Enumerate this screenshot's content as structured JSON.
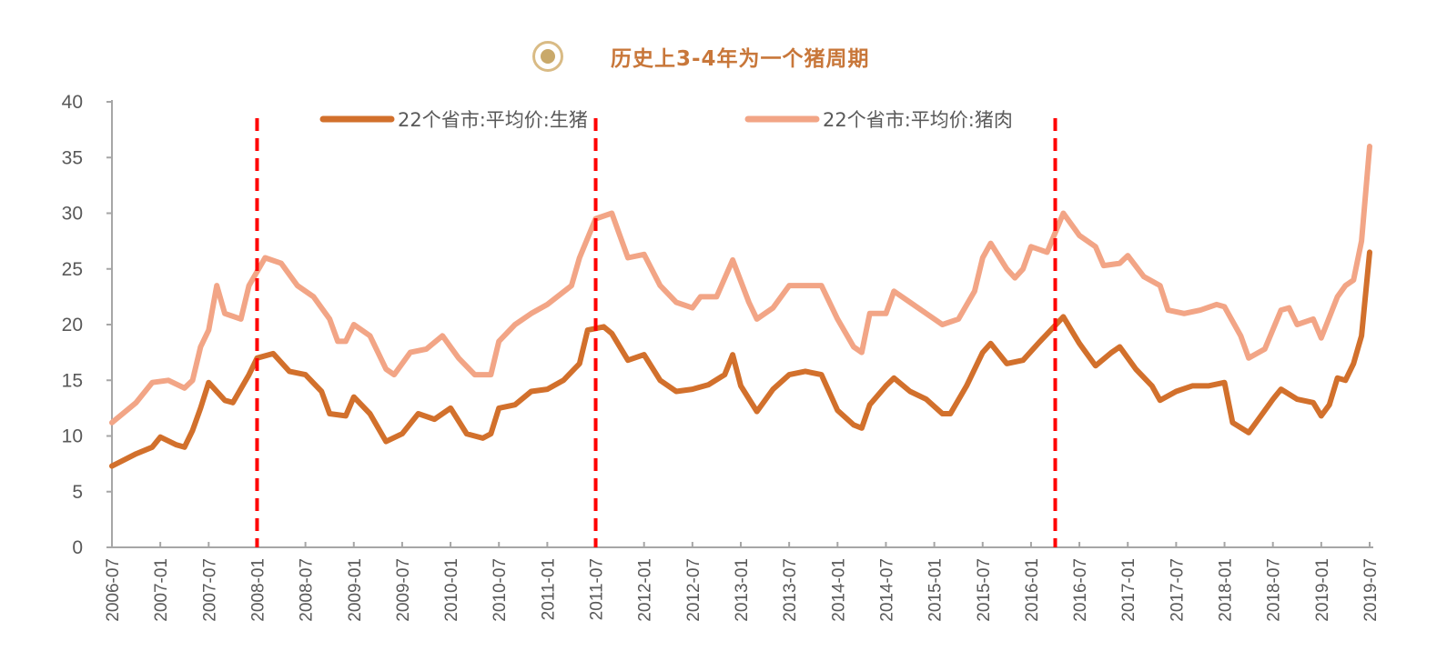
{
  "header": {
    "title": "历史上3-4年为一个猪周期",
    "icon": "target-circle-icon"
  },
  "chart_data": {
    "type": "line",
    "title": "历史上3-4年为一个猪周期",
    "xlabel": "",
    "ylabel": "",
    "ylim": [
      0,
      40
    ],
    "yticks": [
      0,
      5,
      10,
      15,
      20,
      25,
      30,
      35,
      40
    ],
    "xlim": [
      "2006-07",
      "2019-07"
    ],
    "xticks": [
      "2006-07",
      "2007-01",
      "2007-07",
      "2008-01",
      "2008-07",
      "2009-01",
      "2009-07",
      "2010-01",
      "2010-07",
      "2011-01",
      "2011-07",
      "2012-01",
      "2012-07",
      "2013-01",
      "2013-07",
      "2014-01",
      "2014-07",
      "2015-01",
      "2015-07",
      "2016-01",
      "2016-07",
      "2017-01",
      "2017-07",
      "2018-01",
      "2018-07",
      "2019-01",
      "2019-07"
    ],
    "grid": false,
    "legend_placement": "top",
    "cycle_markers": {
      "dates": [
        "2008-01",
        "2011-07",
        "2016-04"
      ],
      "color": "#ff0000",
      "style": "dashed"
    },
    "series": [
      {
        "name": "22个省市:平均价:生猪",
        "color": "#d2702c",
        "points": [
          [
            "2006-07",
            7.3
          ],
          [
            "2006-10",
            8.4
          ],
          [
            "2006-12",
            9
          ],
          [
            "2007-01",
            9.9
          ],
          [
            "2007-03",
            9.2
          ],
          [
            "2007-04",
            9
          ],
          [
            "2007-05",
            10.5
          ],
          [
            "2007-06",
            12.5
          ],
          [
            "2007-07",
            14.8
          ],
          [
            "2007-09",
            13.2
          ],
          [
            "2007-10",
            13
          ],
          [
            "2007-12",
            15.5
          ],
          [
            "2008-01",
            17
          ],
          [
            "2008-03",
            17.4
          ],
          [
            "2008-05",
            15.8
          ],
          [
            "2008-07",
            15.5
          ],
          [
            "2008-09",
            14
          ],
          [
            "2008-10",
            12
          ],
          [
            "2008-12",
            11.8
          ],
          [
            "2009-01",
            13.5
          ],
          [
            "2009-03",
            12
          ],
          [
            "2009-05",
            9.5
          ],
          [
            "2009-07",
            10.2
          ],
          [
            "2009-09",
            12
          ],
          [
            "2009-11",
            11.5
          ],
          [
            "2010-01",
            12.5
          ],
          [
            "2010-03",
            10.2
          ],
          [
            "2010-05",
            9.8
          ],
          [
            "2010-06",
            10.2
          ],
          [
            "2010-07",
            12.5
          ],
          [
            "2010-09",
            12.8
          ],
          [
            "2010-11",
            14
          ],
          [
            "2011-01",
            14.2
          ],
          [
            "2011-03",
            15
          ],
          [
            "2011-05",
            16.5
          ],
          [
            "2011-06",
            19.5
          ],
          [
            "2011-08",
            19.8
          ],
          [
            "2011-09",
            19.2
          ],
          [
            "2011-11",
            16.8
          ],
          [
            "2012-01",
            17.3
          ],
          [
            "2012-03",
            15
          ],
          [
            "2012-05",
            14
          ],
          [
            "2012-07",
            14.2
          ],
          [
            "2012-09",
            14.6
          ],
          [
            "2012-11",
            15.5
          ],
          [
            "2012-12",
            17.3
          ],
          [
            "2013-01",
            14.5
          ],
          [
            "2013-03",
            12.2
          ],
          [
            "2013-05",
            14.2
          ],
          [
            "2013-07",
            15.5
          ],
          [
            "2013-09",
            15.8
          ],
          [
            "2013-11",
            15.5
          ],
          [
            "2014-01",
            12.3
          ],
          [
            "2014-03",
            11
          ],
          [
            "2014-04",
            10.7
          ],
          [
            "2014-05",
            12.8
          ],
          [
            "2014-07",
            14.5
          ],
          [
            "2014-08",
            15.2
          ],
          [
            "2014-10",
            14
          ],
          [
            "2014-12",
            13.3
          ],
          [
            "2015-02",
            12
          ],
          [
            "2015-03",
            12
          ],
          [
            "2015-05",
            14.5
          ],
          [
            "2015-07",
            17.5
          ],
          [
            "2015-08",
            18.3
          ],
          [
            "2015-10",
            16.5
          ],
          [
            "2015-12",
            16.8
          ],
          [
            "2016-02",
            18.4
          ],
          [
            "2016-05",
            20.7
          ],
          [
            "2016-06",
            19.5
          ],
          [
            "2016-07",
            18.3
          ],
          [
            "2016-09",
            16.3
          ],
          [
            "2016-11",
            17.5
          ],
          [
            "2016-12",
            18
          ],
          [
            "2017-02",
            16
          ],
          [
            "2017-04",
            14.5
          ],
          [
            "2017-05",
            13.2
          ],
          [
            "2017-07",
            14
          ],
          [
            "2017-09",
            14.5
          ],
          [
            "2017-11",
            14.5
          ],
          [
            "2018-01",
            14.8
          ],
          [
            "2018-02",
            11.2
          ],
          [
            "2018-04",
            10.3
          ],
          [
            "2018-05",
            11.3
          ],
          [
            "2018-07",
            13.3
          ],
          [
            "2018-08",
            14.2
          ],
          [
            "2018-10",
            13.3
          ],
          [
            "2018-12",
            13
          ],
          [
            "2019-01",
            11.8
          ],
          [
            "2019-02",
            12.8
          ],
          [
            "2019-03",
            15.2
          ],
          [
            "2019-04",
            15
          ],
          [
            "2019-05",
            16.5
          ],
          [
            "2019-06",
            19
          ],
          [
            "2019-07",
            26.5
          ]
        ]
      },
      {
        "name": "22个省市:平均价:猪肉",
        "color": "#f2a586",
        "points": [
          [
            "2006-07",
            11.2
          ],
          [
            "2006-10",
            13
          ],
          [
            "2006-12",
            14.8
          ],
          [
            "2007-02",
            15
          ],
          [
            "2007-04",
            14.3
          ],
          [
            "2007-05",
            15
          ],
          [
            "2007-06",
            18
          ],
          [
            "2007-07",
            19.5
          ],
          [
            "2007-08",
            23.5
          ],
          [
            "2007-09",
            21
          ],
          [
            "2007-11",
            20.5
          ],
          [
            "2007-12",
            23.5
          ],
          [
            "2008-02",
            26
          ],
          [
            "2008-04",
            25.5
          ],
          [
            "2008-06",
            23.5
          ],
          [
            "2008-08",
            22.5
          ],
          [
            "2008-10",
            20.5
          ],
          [
            "2008-11",
            18.5
          ],
          [
            "2008-12",
            18.5
          ],
          [
            "2009-01",
            20
          ],
          [
            "2009-03",
            19
          ],
          [
            "2009-05",
            16
          ],
          [
            "2009-06",
            15.5
          ],
          [
            "2009-08",
            17.5
          ],
          [
            "2009-10",
            17.8
          ],
          [
            "2009-12",
            19
          ],
          [
            "2010-02",
            17
          ],
          [
            "2010-04",
            15.5
          ],
          [
            "2010-06",
            15.5
          ],
          [
            "2010-07",
            18.5
          ],
          [
            "2010-09",
            20
          ],
          [
            "2010-11",
            21
          ],
          [
            "2011-01",
            21.8
          ],
          [
            "2011-04",
            23.5
          ],
          [
            "2011-05",
            26
          ],
          [
            "2011-07",
            29.5
          ],
          [
            "2011-09",
            30
          ],
          [
            "2011-10",
            28
          ],
          [
            "2011-11",
            26
          ],
          [
            "2012-01",
            26.3
          ],
          [
            "2012-03",
            23.5
          ],
          [
            "2012-05",
            22
          ],
          [
            "2012-07",
            21.5
          ],
          [
            "2012-08",
            22.5
          ],
          [
            "2012-10",
            22.5
          ],
          [
            "2012-12",
            25.8
          ],
          [
            "2013-02",
            22
          ],
          [
            "2013-03",
            20.5
          ],
          [
            "2013-05",
            21.5
          ],
          [
            "2013-07",
            23.5
          ],
          [
            "2013-09",
            23.5
          ],
          [
            "2013-11",
            23.5
          ],
          [
            "2014-01",
            20.5
          ],
          [
            "2014-03",
            18
          ],
          [
            "2014-04",
            17.5
          ],
          [
            "2014-05",
            21
          ],
          [
            "2014-07",
            21
          ],
          [
            "2014-08",
            23
          ],
          [
            "2014-10",
            22
          ],
          [
            "2014-12",
            21
          ],
          [
            "2015-02",
            20
          ],
          [
            "2015-04",
            20.5
          ],
          [
            "2015-06",
            23
          ],
          [
            "2015-07",
            26
          ],
          [
            "2015-08",
            27.3
          ],
          [
            "2015-10",
            25
          ],
          [
            "2015-11",
            24.2
          ],
          [
            "2015-12",
            25
          ],
          [
            "2016-01",
            27
          ],
          [
            "2016-03",
            26.5
          ],
          [
            "2016-05",
            30
          ],
          [
            "2016-07",
            28
          ],
          [
            "2016-09",
            27
          ],
          [
            "2016-10",
            25.3
          ],
          [
            "2016-12",
            25.5
          ],
          [
            "2017-01",
            26.2
          ],
          [
            "2017-03",
            24.3
          ],
          [
            "2017-05",
            23.5
          ],
          [
            "2017-06",
            21.3
          ],
          [
            "2017-08",
            21
          ],
          [
            "2017-10",
            21.3
          ],
          [
            "2017-12",
            21.8
          ],
          [
            "2018-01",
            21.6
          ],
          [
            "2018-03",
            19
          ],
          [
            "2018-04",
            17
          ],
          [
            "2018-06",
            17.8
          ],
          [
            "2018-08",
            21.3
          ],
          [
            "2018-09",
            21.5
          ],
          [
            "2018-10",
            20
          ],
          [
            "2018-12",
            20.5
          ],
          [
            "2019-01",
            18.8
          ],
          [
            "2019-03",
            22.5
          ],
          [
            "2019-04",
            23.5
          ],
          [
            "2019-05",
            24
          ],
          [
            "2019-06",
            27.5
          ],
          [
            "2019-07",
            36
          ]
        ]
      }
    ]
  }
}
